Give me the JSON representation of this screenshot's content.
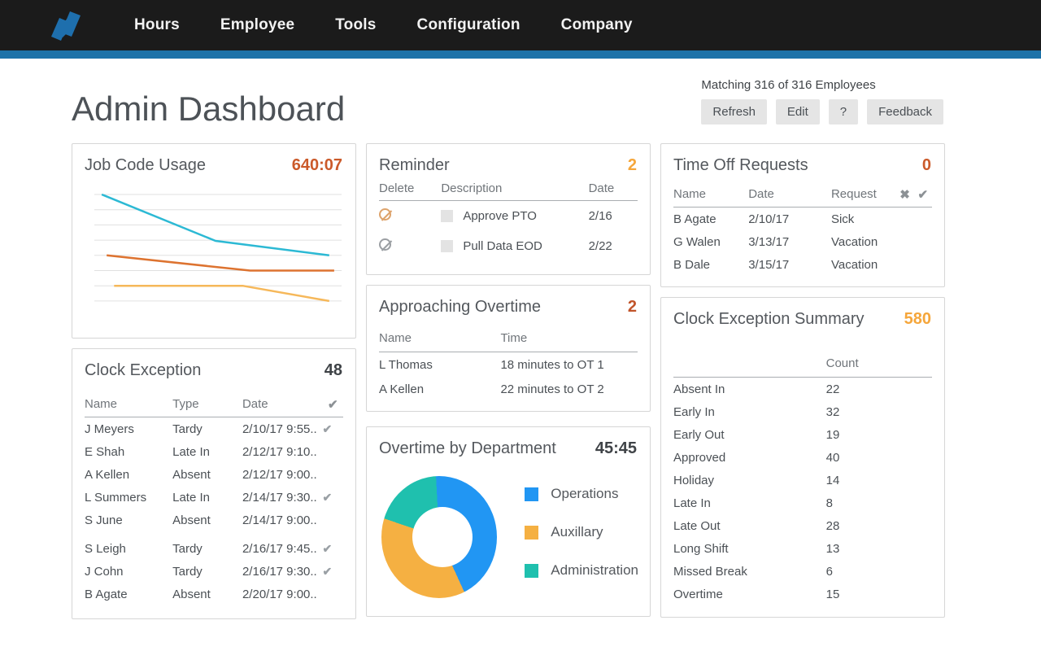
{
  "nav": {
    "items": [
      "Hours",
      "Employee",
      "Tools",
      "Configuration",
      "Company"
    ]
  },
  "header": {
    "title": "Admin Dashboard",
    "matching": "Matching 316 of 316 Employees",
    "buttons": [
      "Refresh",
      "Edit",
      "?",
      "Feedback"
    ]
  },
  "icons": {
    "check": "✔",
    "x": "✖"
  },
  "colors": {
    "nav_bg": "#1b1b1b",
    "accent_blue_bar": "#1d72a8",
    "logo_blue": "#1e6fad",
    "burnt_orange": "#cb5a2a",
    "amber": "#f5a63b",
    "dark_value": "#3f4347"
  },
  "cards": {
    "job_code_usage": {
      "title": "Job Code Usage",
      "value": "640:07",
      "value_color": "#cb5a2a"
    },
    "clock_exception": {
      "title": "Clock Exception",
      "value": "48",
      "value_color": "#3f4347",
      "columns": [
        "Name",
        "Type",
        "Date"
      ],
      "rows": [
        {
          "name": "J Meyers",
          "type": "Tardy",
          "date": "2/10/17 9:55..",
          "checked": true,
          "gap": false
        },
        {
          "name": "E Shah",
          "type": "Late In",
          "date": "2/12/17 9:10..",
          "checked": false,
          "gap": false
        },
        {
          "name": "A Kellen",
          "type": "Absent",
          "date": "2/12/17 9:00..",
          "checked": false,
          "gap": false
        },
        {
          "name": "L Summers",
          "type": "Late In",
          "date": "2/14/17 9:30..",
          "checked": true,
          "gap": false
        },
        {
          "name": "S June",
          "type": "Absent",
          "date": "2/14/17 9:00..",
          "checked": false,
          "gap": true
        },
        {
          "name": "S Leigh",
          "type": "Tardy",
          "date": "2/16/17 9:45..",
          "checked": true,
          "gap": false
        },
        {
          "name": "J Cohn",
          "type": "Tardy",
          "date": "2/16/17 9:30..",
          "checked": true,
          "gap": false
        },
        {
          "name": "B Agate",
          "type": "Absent",
          "date": "2/20/17 9:00..",
          "checked": false,
          "gap": false
        }
      ]
    },
    "reminder": {
      "title": "Reminder",
      "value": "2",
      "value_color": "#f5a63b",
      "columns": [
        "Delete",
        "Description",
        "Date"
      ],
      "rows": [
        {
          "description": "Approve PTO",
          "date": "2/16",
          "icon_color": "#dda36c"
        },
        {
          "description": "Pull Data EOD",
          "date": "2/22",
          "icon_color": "#9b9fa3"
        }
      ]
    },
    "approaching_overtime": {
      "title": "Approaching Overtime",
      "value": "2",
      "value_color": "#c1542a",
      "columns": [
        "Name",
        "Time"
      ],
      "rows": [
        {
          "name": "L Thomas",
          "time": "18 minutes to OT 1"
        },
        {
          "name": "A Kellen",
          "time": "22 minutes to OT 2"
        }
      ]
    },
    "overtime_by_department": {
      "title": "Overtime by Department",
      "value": "45:45",
      "value_color": "#3f4347"
    },
    "time_off_requests": {
      "title": "Time Off Requests",
      "value": "0",
      "value_color": "#cb5a2a",
      "columns": [
        "Name",
        "Date",
        "Request"
      ],
      "rows": [
        {
          "name": "B Agate",
          "date": "2/10/17",
          "request": "Sick"
        },
        {
          "name": "G Walen",
          "date": "3/13/17",
          "request": "Vacation"
        },
        {
          "name": "B Dale",
          "date": "3/15/17",
          "request": "Vacation"
        }
      ]
    },
    "clock_exception_summary": {
      "title": "Clock Exception Summary",
      "value": "580",
      "value_color": "#f5a63b",
      "count_header": "Count",
      "rows": [
        {
          "label": "Absent In",
          "count": "22"
        },
        {
          "label": "Early In",
          "count": "32"
        },
        {
          "label": "Early Out",
          "count": "19"
        },
        {
          "label": "Approved",
          "count": "40"
        },
        {
          "label": "Holiday",
          "count": "14"
        },
        {
          "label": "Late In",
          "count": "8"
        },
        {
          "label": "Late Out",
          "count": "28"
        },
        {
          "label": "Long Shift",
          "count": "13"
        },
        {
          "label": "Missed Break",
          "count": "6"
        },
        {
          "label": "Overtime",
          "count": "15"
        }
      ]
    }
  },
  "chart_data": [
    {
      "type": "line",
      "title": "Job Code Usage",
      "total": "640:07",
      "xlabel": "",
      "ylabel": "",
      "axis_tick_labels": "none visible",
      "grid": true,
      "gridlines": 8,
      "note": "y values expressed in gridline units, 0 = top gridline, 7 = bottom gridline; x as fraction of plot width",
      "series": [
        {
          "name": "series-1",
          "color": "#2cb9d4",
          "points": [
            [
              0.03,
              0.0
            ],
            [
              0.49,
              3.05
            ],
            [
              0.95,
              4.0
            ]
          ]
        },
        {
          "name": "series-2",
          "color": "#dd7330",
          "points": [
            [
              0.05,
              4.0
            ],
            [
              0.63,
              5.0
            ],
            [
              0.97,
              5.0
            ]
          ]
        },
        {
          "name": "series-3",
          "color": "#f6b85a",
          "points": [
            [
              0.08,
              6.0
            ],
            [
              0.6,
              6.0
            ],
            [
              0.95,
              7.0
            ]
          ]
        }
      ]
    },
    {
      "type": "donut",
      "title": "Overtime by Department",
      "total": "45:45",
      "rotation_deg": -3,
      "legend_position": "right",
      "segments": [
        {
          "label": "Operations",
          "color": "#2196f3",
          "percent": 44
        },
        {
          "label": "Auxillary",
          "color": "#f5b042",
          "percent": 37
        },
        {
          "label": "Administration",
          "color": "#1fc0ae",
          "percent": 19
        }
      ]
    }
  ]
}
